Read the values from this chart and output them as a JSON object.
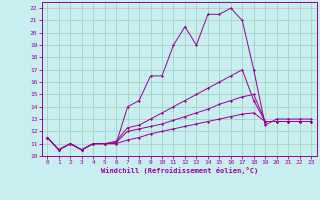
{
  "xlabel": "Windchill (Refroidissement éolien,°C)",
  "xlim": [
    -0.5,
    23.5
  ],
  "ylim": [
    10,
    22.5
  ],
  "xticks": [
    0,
    1,
    2,
    3,
    4,
    5,
    6,
    7,
    8,
    9,
    10,
    11,
    12,
    13,
    14,
    15,
    16,
    17,
    18,
    19,
    20,
    21,
    22,
    23
  ],
  "yticks": [
    10,
    11,
    12,
    13,
    14,
    15,
    16,
    17,
    18,
    19,
    20,
    21,
    22
  ],
  "bg_color": "#c8eef0",
  "line_color": "#990099",
  "grid_color": "#99ccbb",
  "lines": [
    {
      "x": [
        0,
        1,
        2,
        3,
        4,
        5,
        6,
        7,
        8,
        9,
        10,
        11,
        12,
        13,
        14,
        15,
        16,
        17,
        18,
        19,
        20,
        21,
        22,
        23
      ],
      "y": [
        11.5,
        10.5,
        11.0,
        10.5,
        11.0,
        11.0,
        11.0,
        14.0,
        14.5,
        16.5,
        16.5,
        19.0,
        20.5,
        19.0,
        21.5,
        21.5,
        22.0,
        21.0,
        17.0,
        12.5,
        13.0,
        13.0,
        13.0,
        13.0
      ]
    },
    {
      "x": [
        0,
        1,
        2,
        3,
        4,
        5,
        6,
        7,
        8,
        9,
        10,
        11,
        12,
        13,
        14,
        15,
        16,
        17,
        18,
        19,
        20,
        21,
        22,
        23
      ],
      "y": [
        11.5,
        10.5,
        11.0,
        10.5,
        11.0,
        11.0,
        11.2,
        12.3,
        12.5,
        13.0,
        13.5,
        14.0,
        14.5,
        15.0,
        15.5,
        16.0,
        16.5,
        17.0,
        14.5,
        12.8,
        12.8,
        12.8,
        12.8,
        12.8
      ]
    },
    {
      "x": [
        0,
        1,
        2,
        3,
        4,
        5,
        6,
        7,
        8,
        9,
        10,
        11,
        12,
        13,
        14,
        15,
        16,
        17,
        18,
        19,
        20,
        21,
        22,
        23
      ],
      "y": [
        11.5,
        10.5,
        11.0,
        10.5,
        11.0,
        11.0,
        11.1,
        12.0,
        12.2,
        12.4,
        12.6,
        12.9,
        13.2,
        13.5,
        13.8,
        14.2,
        14.5,
        14.8,
        15.0,
        12.8,
        12.8,
        12.8,
        12.8,
        12.8
      ]
    },
    {
      "x": [
        0,
        1,
        2,
        3,
        4,
        5,
        6,
        7,
        8,
        9,
        10,
        11,
        12,
        13,
        14,
        15,
        16,
        17,
        18,
        19,
        20,
        21,
        22,
        23
      ],
      "y": [
        11.5,
        10.5,
        11.0,
        10.5,
        11.0,
        11.0,
        11.0,
        11.3,
        11.5,
        11.8,
        12.0,
        12.2,
        12.4,
        12.6,
        12.8,
        13.0,
        13.2,
        13.4,
        13.5,
        12.8,
        12.8,
        12.8,
        12.8,
        12.8
      ]
    }
  ]
}
